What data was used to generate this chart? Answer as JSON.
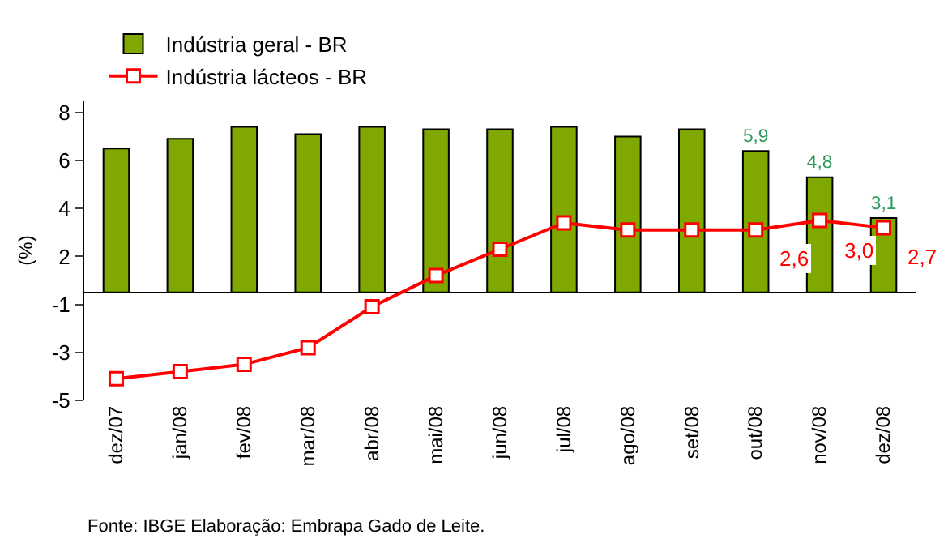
{
  "chart_data": {
    "type": "bar",
    "ylabel": "(%)",
    "categories": [
      "dez/07",
      "jan/08",
      "fev/08",
      "mar/08",
      "abr/08",
      "mai/08",
      "jun/08",
      "jul/08",
      "ago/08",
      "set/08",
      "out/08",
      "nov/08",
      "dez/08"
    ],
    "series": [
      {
        "name": "Indústria geral - BR",
        "color": "#7fa800",
        "values": [
          6.0,
          6.4,
          6.9,
          6.6,
          6.9,
          6.8,
          6.8,
          6.9,
          6.5,
          6.8,
          5.9,
          4.8,
          3.1
        ],
        "value_labels": [
          null,
          null,
          null,
          null,
          null,
          null,
          null,
          null,
          null,
          null,
          "5,9",
          "4,8",
          "3,1"
        ]
      },
      {
        "name": "Indústria lácteos - BR",
        "type": "line",
        "color": "#ff0000",
        "marker": "square",
        "values": [
          -3.6,
          -3.3,
          -3.0,
          -2.3,
          -0.6,
          0.7,
          1.8,
          2.9,
          2.6,
          2.6,
          2.6,
          3.0,
          2.7
        ],
        "value_labels": [
          null,
          null,
          null,
          null,
          null,
          null,
          null,
          null,
          null,
          null,
          "2,6",
          "3,0",
          "2,7"
        ]
      }
    ],
    "ylim": [
      -4.5,
      8
    ],
    "yticks": [
      {
        "value": 7.5,
        "label": "8"
      },
      {
        "value": 5.5,
        "label": "6"
      },
      {
        "value": 3.5,
        "label": "4"
      },
      {
        "value": 1.5,
        "label": "2"
      },
      {
        "value": -0.5,
        "label": "-1"
      },
      {
        "value": -2.5,
        "label": "-3"
      },
      {
        "value": -4.5,
        "label": "-5"
      }
    ],
    "legend": "top left",
    "annotations": [
      "Fonte: IBGE Elaboração: Embrapa Gado de Leite."
    ]
  }
}
